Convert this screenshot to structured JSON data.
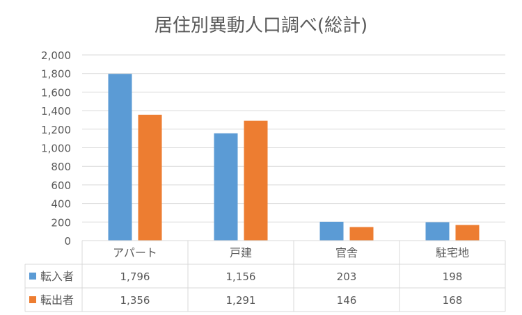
{
  "chart_data": {
    "type": "bar",
    "title": "居住別異動人口調べ(総計)",
    "categories": [
      "アパート",
      "戸建",
      "官舎",
      "駐宅地"
    ],
    "series": [
      {
        "name": "転入者",
        "values": [
          1796,
          1156,
          203,
          198
        ],
        "labels": [
          "1,796",
          "1,156",
          "203",
          "198"
        ],
        "color": "#5B9BD5"
      },
      {
        "name": "転出者",
        "values": [
          1356,
          1291,
          146,
          168
        ],
        "labels": [
          "1,356",
          "1,291",
          "146",
          "168"
        ],
        "color": "#ED7D31"
      }
    ],
    "ylim": [
      0,
      2000
    ],
    "yticks": [
      0,
      200,
      400,
      600,
      800,
      1000,
      1200,
      1400,
      1600,
      1800,
      2000
    ],
    "ytick_labels": [
      "0",
      "200",
      "400",
      "600",
      "800",
      "1,000",
      "1,200",
      "1,400",
      "1,600",
      "1,800",
      "2,000"
    ],
    "grid": true,
    "data_table": true,
    "legend": "data-table"
  }
}
